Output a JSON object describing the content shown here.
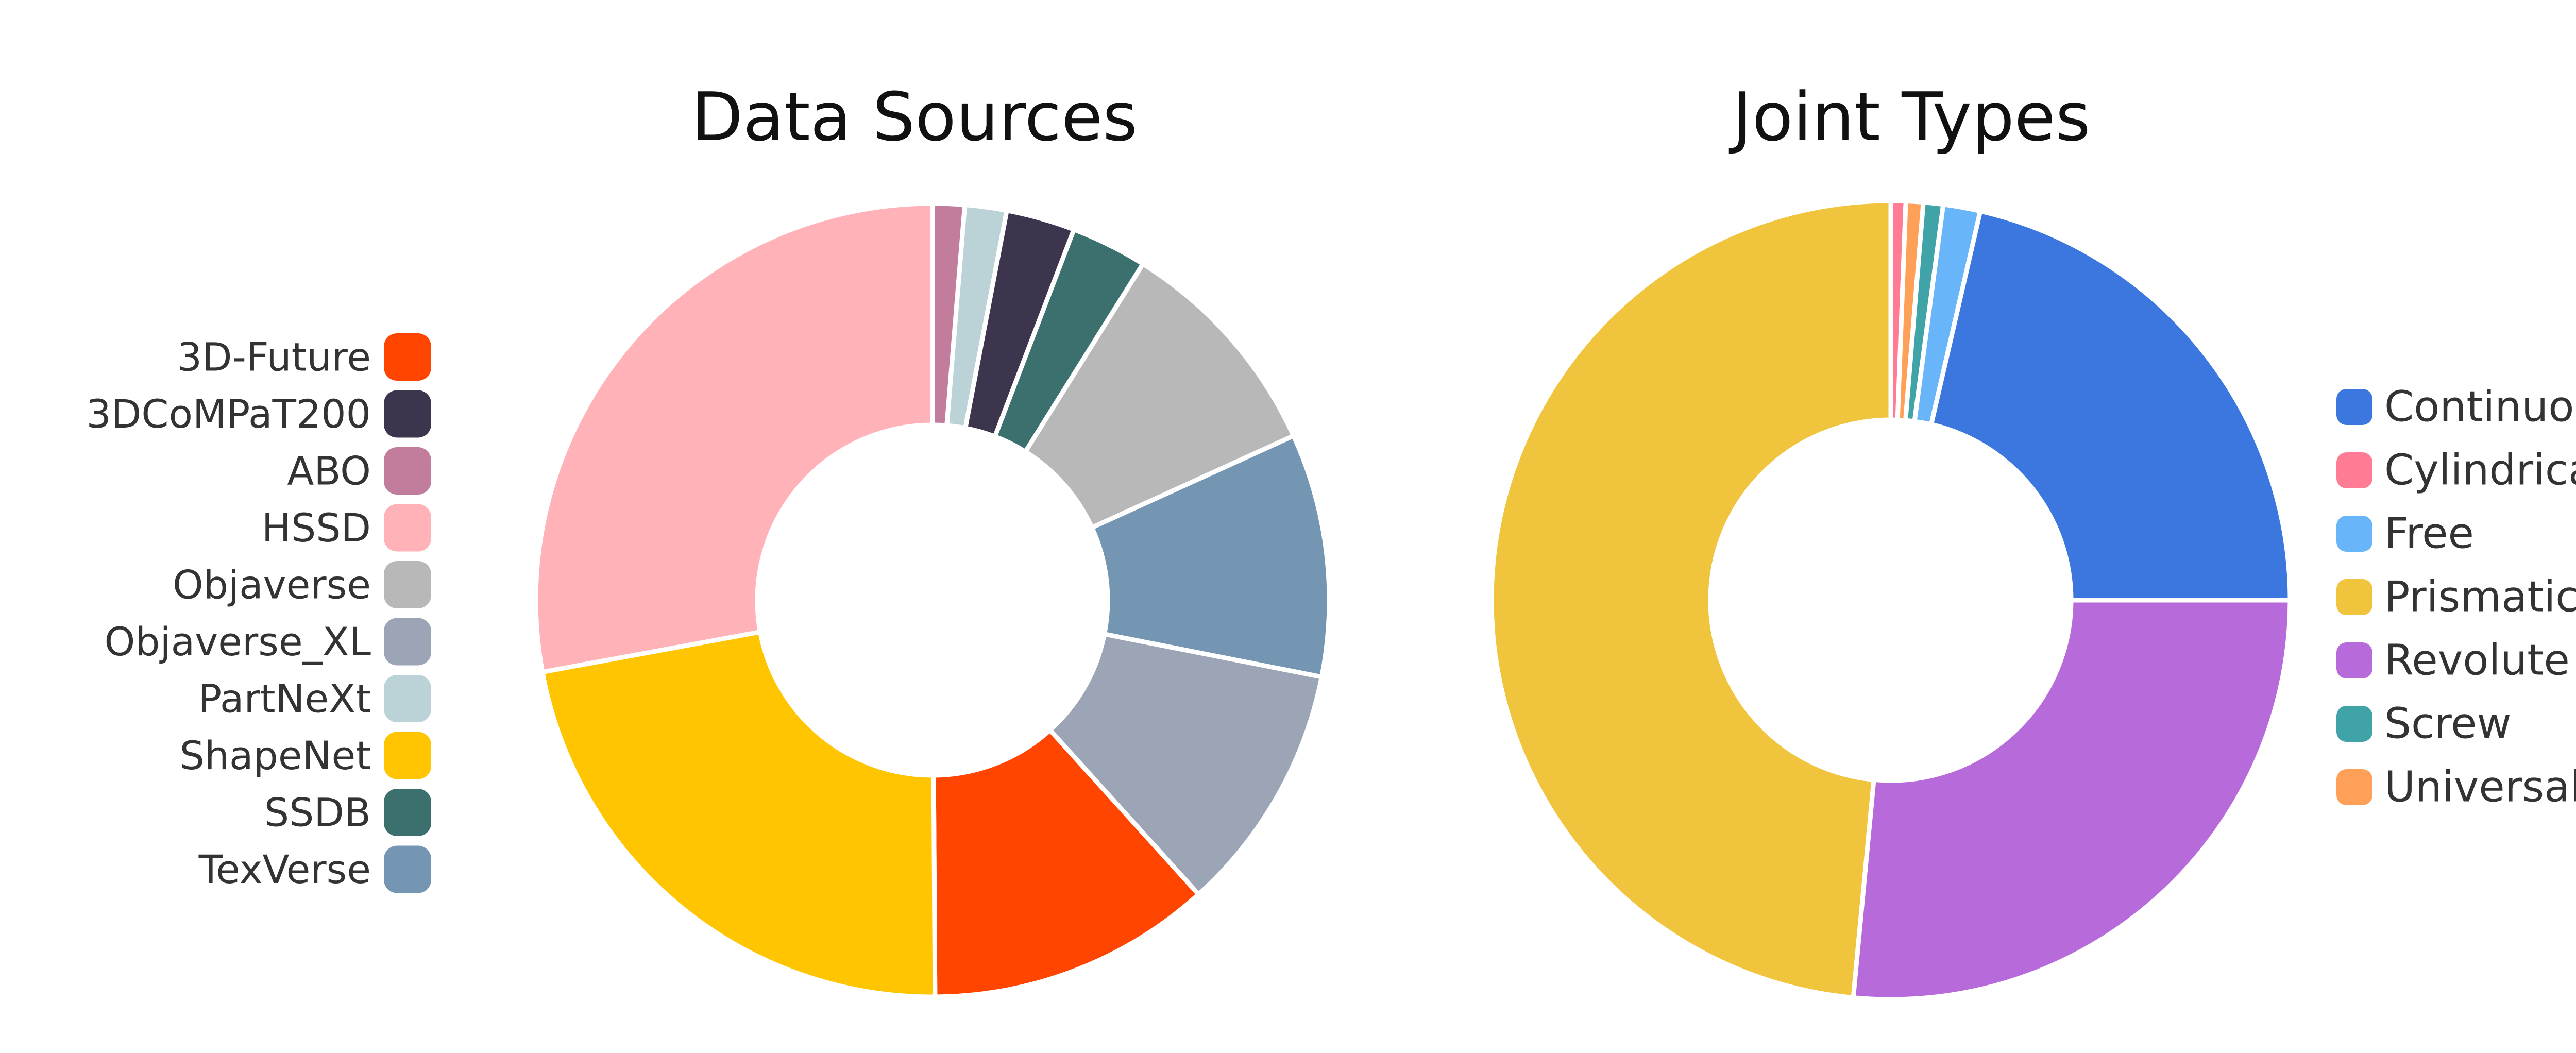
{
  "chart_data": [
    {
      "type": "pie",
      "title": "Data Sources",
      "donut": true,
      "legend_position": "left",
      "start_angle_deg": 0,
      "slices": [
        {
          "label": "ABO",
          "value": 1.3,
          "color": "#C17D9B"
        },
        {
          "label": "PartNeXt",
          "value": 1.7,
          "color": "#BBD2D6"
        },
        {
          "label": "3DCoMPaT200",
          "value": 2.8,
          "color": "#3D344E"
        },
        {
          "label": "SSDB",
          "value": 3.1,
          "color": "#3B706E"
        },
        {
          "label": "Objaverse",
          "value": 9.3,
          "color": "#B8B8B8"
        },
        {
          "label": "TexVerse",
          "value": 9.9,
          "color": "#7496B2"
        },
        {
          "label": "Objaverse_XL",
          "value": 10.2,
          "color": "#9BA5B5"
        },
        {
          "label": "3D-Future",
          "value": 11.6,
          "color": "#FF4500"
        },
        {
          "label": "ShapeNet",
          "value": 22.2,
          "color": "#FFC500"
        },
        {
          "label": "HSSD",
          "value": 27.9,
          "color": "#FFB3B9"
        }
      ],
      "legend": [
        {
          "label": "3D-Future",
          "color": "#FF4500"
        },
        {
          "label": "3DCoMPaT200",
          "color": "#3D344E"
        },
        {
          "label": "ABO",
          "color": "#C17D9B"
        },
        {
          "label": "HSSD",
          "color": "#FFB3B9"
        },
        {
          "label": "Objaverse",
          "color": "#B8B8B8"
        },
        {
          "label": "Objaverse_XL",
          "color": "#9BA5B5"
        },
        {
          "label": "PartNeXt",
          "color": "#BBD2D6"
        },
        {
          "label": "ShapeNet",
          "color": "#FFC500"
        },
        {
          "label": "SSDB",
          "color": "#3B706E"
        },
        {
          "label": "TexVerse",
          "color": "#7496B2"
        }
      ]
    },
    {
      "type": "pie",
      "title": "Joint Types",
      "donut": true,
      "legend_position": "right",
      "start_angle_deg": 0,
      "slices": [
        {
          "label": "Cylindrical",
          "value": 0.6,
          "color": "#FF7C94"
        },
        {
          "label": "Universal",
          "value": 0.7,
          "color": "#FFA058"
        },
        {
          "label": "Screw",
          "value": 0.8,
          "color": "#3FA3A8"
        },
        {
          "label": "Free",
          "value": 1.5,
          "color": "#69B5F9"
        },
        {
          "label": "Continuous",
          "value": 21.4,
          "color": "#3B77DF"
        },
        {
          "label": "Revolute",
          "value": 26.5,
          "color": "#B76AD9"
        },
        {
          "label": "Prismatic",
          "value": 48.5,
          "color": "#F0C43C"
        }
      ],
      "legend": [
        {
          "label": "Continuous",
          "color": "#3B77DF"
        },
        {
          "label": "Cylindrical",
          "color": "#FF7C94"
        },
        {
          "label": "Free",
          "color": "#69B5F9"
        },
        {
          "label": "Prismatic",
          "color": "#F0C43C"
        },
        {
          "label": "Revolute",
          "color": "#B76AD9"
        },
        {
          "label": "Screw",
          "color": "#3FA3A8"
        },
        {
          "label": "Universal",
          "color": "#FFA058"
        }
      ]
    }
  ]
}
